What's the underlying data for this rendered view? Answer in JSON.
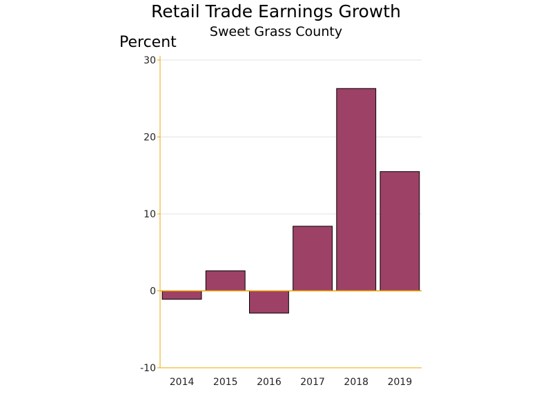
{
  "chart_data": {
    "type": "bar",
    "title": "Retail Trade Earnings Growth",
    "subtitle": "Sweet Grass County",
    "ylabel": "Percent",
    "xlabel": "",
    "categories": [
      "2014",
      "2015",
      "2016",
      "2017",
      "2018",
      "2019"
    ],
    "values": [
      -1.1,
      2.6,
      -2.9,
      8.4,
      26.3,
      15.5
    ],
    "ylim": [
      -10,
      30
    ],
    "yticks": [
      "-10",
      "0",
      "10",
      "20",
      "30"
    ],
    "grid": true,
    "bar_color": "#9e4166",
    "axis_color": "#f0a500"
  }
}
